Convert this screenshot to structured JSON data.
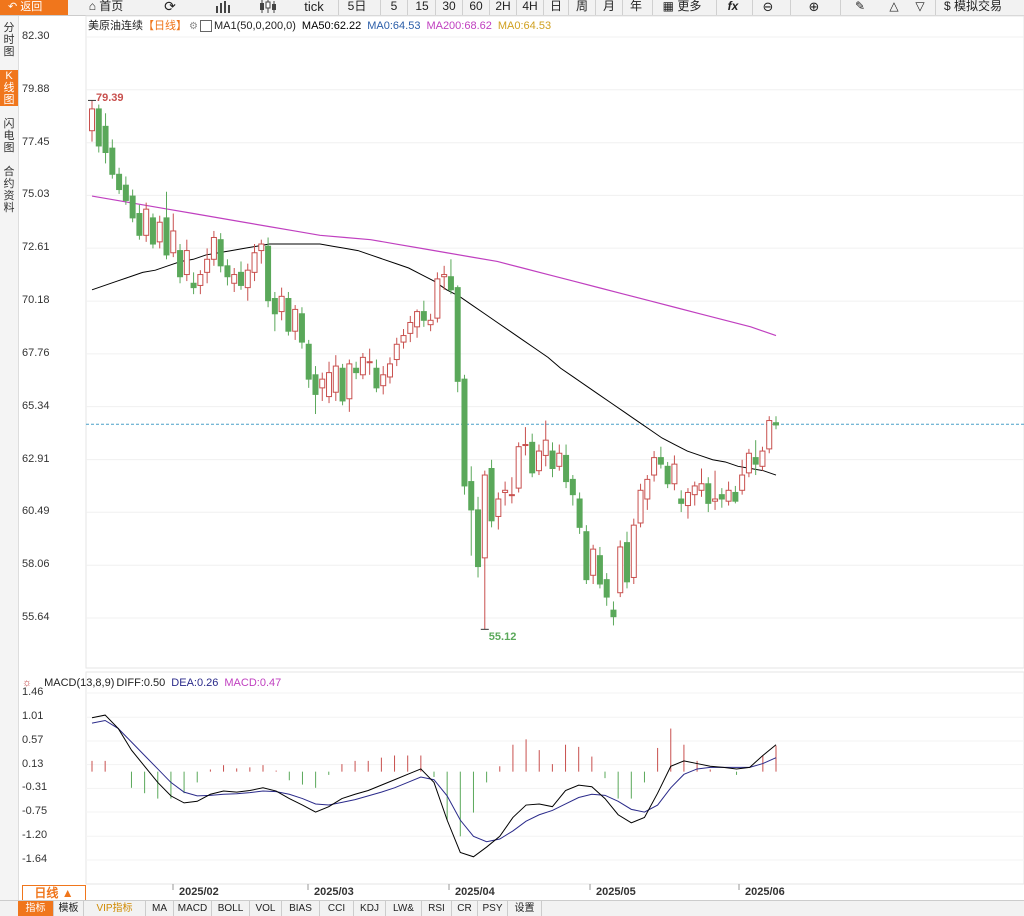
{
  "toolbar": {
    "back_label": "返回",
    "home_label": "首页",
    "period_buttons": [
      "5日",
      "5",
      "15",
      "30",
      "60",
      "2H",
      "4H",
      "日",
      "周",
      "月",
      "年"
    ],
    "tick_label": "tick",
    "more_label": "更多",
    "trade_label": "模拟交易"
  },
  "sidebar": [
    "分时图",
    "K线图",
    "闪电图",
    "合约资料"
  ],
  "main_header": {
    "symbol": "美原油连续",
    "period": "【日线】",
    "ma_label": "MA1(50,0,200,0)",
    "ma50": "MA50:62.22",
    "ma0": "MA0:64.53",
    "ma200": "MA200:68.62",
    "ma0b": "MA0:64.53"
  },
  "macd_header": {
    "label": "MACD(13,8,9)",
    "diff": "DIFF:0.50",
    "dea": "DEA:0.26",
    "macd": "MACD:0.47"
  },
  "price_axis": [
    "82.30",
    "79.88",
    "77.45",
    "75.03",
    "72.61",
    "70.18",
    "67.76",
    "65.34",
    "62.91",
    "60.49",
    "58.06",
    "55.64"
  ],
  "macd_axis": [
    "1.46",
    "1.01",
    "0.57",
    "0.13",
    "-0.31",
    "-0.75",
    "-1.20",
    "-1.64"
  ],
  "x_labels": [
    "2025/02",
    "2025/03",
    "2025/04",
    "2025/05",
    "2025/06"
  ],
  "annotations": {
    "high": "79.39",
    "low": "55.12",
    "current_price": 64.53
  },
  "period_selector": "日线",
  "bottom_tabs": [
    "指标",
    "模板",
    "VIP指标",
    "MA",
    "MACD",
    "BOLL",
    "VOL",
    "BIAS",
    "CCI",
    "KDJ",
    "LW&",
    "RSI",
    "CR",
    "PSY",
    "设置"
  ],
  "colors": {
    "up": "#c8504e",
    "down": "#5aa85a",
    "ma50": "#000000",
    "ma200": "#c040c0",
    "accent": "#f0761c",
    "current_line": "#4aa0c8",
    "diff": "#000000",
    "dea": "#2a2a8a",
    "macd_label": "#c040c0"
  },
  "chart_data": {
    "type": "candlestick",
    "x": [
      "2025/01/15",
      "2025/01/16",
      "2025/01/17",
      "2025/01/21",
      "2025/01/22",
      "2025/01/23",
      "2025/01/24",
      "2025/01/27",
      "2025/01/28",
      "2025/01/29",
      "2025/01/30",
      "2025/01/31",
      "2025/02/03",
      "2025/02/04",
      "2025/02/05",
      "2025/02/06",
      "2025/02/07",
      "2025/02/10",
      "2025/02/11",
      "2025/02/12",
      "2025/02/13",
      "2025/02/14",
      "2025/02/18",
      "2025/02/19",
      "2025/02/20",
      "2025/02/21",
      "2025/02/24",
      "2025/02/25",
      "2025/02/26",
      "2025/02/27",
      "2025/02/28",
      "2025/03/03",
      "2025/03/04",
      "2025/03/05",
      "2025/03/06",
      "2025/03/07",
      "2025/03/10",
      "2025/03/11",
      "2025/03/12",
      "2025/03/13",
      "2025/03/14",
      "2025/03/17",
      "2025/03/18",
      "2025/03/19",
      "2025/03/20",
      "2025/03/21",
      "2025/03/24",
      "2025/03/25",
      "2025/03/26",
      "2025/03/27",
      "2025/03/28",
      "2025/03/31",
      "2025/04/01",
      "2025/04/02",
      "2025/04/03",
      "2025/04/04",
      "2025/04/07",
      "2025/04/08",
      "2025/04/09",
      "2025/04/10",
      "2025/04/11",
      "2025/04/14",
      "2025/04/15",
      "2025/04/16",
      "2025/04/17",
      "2025/04/21",
      "2025/04/22",
      "2025/04/23",
      "2025/04/24",
      "2025/04/25",
      "2025/04/28",
      "2025/04/29",
      "2025/04/30",
      "2025/05/01",
      "2025/05/02",
      "2025/05/05",
      "2025/05/06",
      "2025/05/07",
      "2025/05/08",
      "2025/05/09",
      "2025/05/12",
      "2025/05/13",
      "2025/05/14",
      "2025/05/15",
      "2025/05/16",
      "2025/05/19",
      "2025/05/20",
      "2025/05/21",
      "2025/05/22",
      "2025/05/23",
      "2025/05/27",
      "2025/05/28",
      "2025/05/29",
      "2025/05/30",
      "2025/06/02",
      "2025/06/03",
      "2025/06/04",
      "2025/06/05",
      "2025/06/06",
      "2025/06/09",
      "2025/06/10"
    ],
    "ohlc": [
      [
        78.0,
        79.39,
        77.5,
        79.0
      ],
      [
        79.0,
        79.2,
        77.0,
        77.3
      ],
      [
        78.2,
        78.8,
        76.5,
        77.0
      ],
      [
        77.2,
        77.6,
        75.8,
        76.0
      ],
      [
        76.0,
        76.3,
        75.1,
        75.3
      ],
      [
        75.5,
        75.9,
        74.6,
        74.8
      ],
      [
        75.0,
        75.3,
        73.8,
        74.0
      ],
      [
        74.2,
        74.6,
        73.0,
        73.2
      ],
      [
        73.2,
        74.7,
        72.9,
        74.4
      ],
      [
        74.0,
        74.2,
        72.6,
        72.8
      ],
      [
        72.9,
        74.1,
        72.6,
        73.8
      ],
      [
        74.0,
        75.2,
        72.1,
        72.3
      ],
      [
        72.4,
        74.2,
        72.2,
        73.4
      ],
      [
        72.5,
        72.8,
        71.0,
        71.3
      ],
      [
        71.4,
        73.0,
        71.1,
        72.5
      ],
      [
        71.0,
        71.5,
        70.5,
        70.8
      ],
      [
        70.9,
        71.6,
        70.5,
        71.4
      ],
      [
        71.5,
        72.6,
        71.0,
        72.1
      ],
      [
        72.1,
        73.4,
        71.8,
        73.1
      ],
      [
        73.0,
        73.3,
        71.5,
        71.8
      ],
      [
        71.8,
        72.1,
        70.9,
        71.3
      ],
      [
        71.0,
        71.7,
        70.6,
        71.4
      ],
      [
        71.5,
        72.0,
        70.7,
        70.9
      ],
      [
        70.8,
        71.9,
        70.2,
        71.6
      ],
      [
        71.5,
        72.8,
        71.1,
        72.4
      ],
      [
        72.5,
        73.0,
        71.9,
        72.8
      ],
      [
        72.7,
        73.1,
        69.9,
        70.2
      ],
      [
        70.3,
        70.6,
        68.8,
        69.6
      ],
      [
        69.7,
        70.8,
        69.3,
        70.4
      ],
      [
        70.3,
        70.6,
        68.6,
        68.8
      ],
      [
        68.8,
        70.0,
        68.4,
        69.8
      ],
      [
        69.6,
        69.9,
        68.0,
        68.3
      ],
      [
        68.2,
        68.4,
        66.2,
        66.6
      ],
      [
        66.8,
        67.2,
        65.0,
        65.9
      ],
      [
        66.2,
        66.9,
        65.6,
        66.6
      ],
      [
        65.8,
        67.4,
        65.5,
        66.9
      ],
      [
        66.0,
        67.7,
        65.6,
        67.2
      ],
      [
        67.1,
        67.3,
        65.4,
        65.6
      ],
      [
        65.7,
        67.5,
        65.1,
        67.3
      ],
      [
        67.1,
        67.4,
        66.6,
        66.9
      ],
      [
        66.8,
        67.8,
        66.6,
        67.6
      ],
      [
        67.4,
        68.0,
        66.8,
        67.4
      ],
      [
        67.1,
        67.5,
        66.0,
        66.2
      ],
      [
        66.3,
        67.2,
        65.9,
        66.8
      ],
      [
        66.7,
        67.6,
        66.4,
        67.3
      ],
      [
        67.5,
        68.5,
        67.2,
        68.2
      ],
      [
        68.3,
        68.9,
        68.0,
        68.6
      ],
      [
        68.7,
        69.5,
        68.3,
        69.2
      ],
      [
        69.0,
        69.8,
        68.5,
        69.7
      ],
      [
        69.7,
        70.2,
        69.0,
        69.3
      ],
      [
        69.1,
        69.6,
        68.8,
        69.3
      ],
      [
        69.4,
        71.5,
        69.2,
        71.2
      ],
      [
        71.3,
        71.8,
        70.7,
        71.4
      ],
      [
        71.3,
        72.1,
        70.5,
        70.7
      ],
      [
        70.8,
        70.9,
        66.0,
        66.5
      ],
      [
        66.6,
        66.8,
        61.3,
        61.7
      ],
      [
        61.9,
        62.6,
        58.5,
        60.6
      ],
      [
        60.6,
        61.2,
        57.5,
        58.0
      ],
      [
        58.4,
        62.4,
        55.12,
        62.2
      ],
      [
        62.5,
        62.9,
        59.8,
        60.1
      ],
      [
        60.3,
        61.4,
        59.7,
        61.1
      ],
      [
        61.4,
        61.9,
        60.8,
        61.5
      ],
      [
        61.3,
        62.1,
        60.9,
        61.3
      ],
      [
        61.6,
        63.7,
        61.4,
        63.5
      ],
      [
        63.6,
        64.4,
        63.1,
        63.6
      ],
      [
        63.7,
        64.1,
        62.1,
        62.3
      ],
      [
        62.4,
        63.6,
        62.2,
        63.3
      ],
      [
        63.1,
        64.7,
        62.6,
        63.8
      ],
      [
        63.3,
        63.7,
        62.1,
        62.5
      ],
      [
        62.6,
        63.6,
        62.4,
        63.2
      ],
      [
        63.1,
        63.6,
        61.6,
        61.9
      ],
      [
        62.0,
        62.2,
        60.8,
        61.3
      ],
      [
        61.1,
        61.4,
        59.5,
        59.8
      ],
      [
        59.6,
        59.9,
        57.2,
        57.4
      ],
      [
        57.6,
        59.0,
        57.2,
        58.8
      ],
      [
        58.5,
        58.9,
        57.0,
        57.2
      ],
      [
        57.4,
        57.7,
        56.2,
        56.6
      ],
      [
        56.0,
        56.4,
        55.3,
        55.7
      ],
      [
        56.8,
        59.2,
        56.6,
        58.9
      ],
      [
        59.1,
        59.6,
        57.0,
        57.3
      ],
      [
        57.5,
        60.2,
        57.2,
        59.9
      ],
      [
        60.0,
        61.8,
        59.8,
        61.5
      ],
      [
        61.1,
        62.2,
        60.6,
        62.0
      ],
      [
        62.2,
        63.3,
        61.9,
        63.0
      ],
      [
        63.0,
        63.5,
        62.5,
        62.7
      ],
      [
        62.6,
        62.8,
        61.6,
        61.8
      ],
      [
        61.8,
        63.1,
        61.5,
        62.7
      ],
      [
        61.1,
        61.5,
        60.5,
        60.9
      ],
      [
        60.8,
        61.6,
        60.2,
        61.4
      ],
      [
        61.3,
        61.9,
        60.8,
        61.7
      ],
      [
        61.5,
        62.5,
        61.2,
        61.8
      ],
      [
        61.8,
        62.1,
        60.5,
        60.9
      ],
      [
        61.0,
        62.4,
        60.6,
        61.1
      ],
      [
        61.3,
        61.6,
        60.7,
        61.1
      ],
      [
        61.0,
        61.9,
        60.8,
        61.5
      ],
      [
        61.4,
        61.7,
        60.9,
        61.0
      ],
      [
        61.5,
        62.9,
        61.3,
        62.2
      ],
      [
        62.3,
        63.4,
        62.1,
        63.2
      ],
      [
        63.0,
        63.8,
        62.2,
        62.7
      ],
      [
        62.6,
        63.5,
        62.4,
        63.3
      ],
      [
        63.4,
        64.9,
        63.2,
        64.7
      ],
      [
        64.6,
        64.9,
        64.3,
        64.5
      ]
    ],
    "ma50": [
      70.7,
      70.9,
      71.1,
      71.3,
      71.5,
      71.6,
      71.8,
      72.0,
      72.1,
      72.3,
      72.4,
      72.5,
      72.6,
      72.7,
      72.8,
      72.8,
      72.8,
      72.8,
      72.8,
      72.7,
      72.6,
      72.5,
      72.3,
      72.1,
      71.9,
      71.7,
      71.4,
      71.1,
      70.7,
      70.4,
      70.0,
      69.6,
      69.2,
      68.8,
      68.4,
      68.0,
      67.6,
      67.1,
      66.7,
      66.3,
      65.9,
      65.5,
      65.1,
      64.7,
      64.3,
      63.9,
      63.6,
      63.3,
      63.1,
      62.9,
      62.8,
      62.6,
      62.5,
      62.4,
      62.2
    ],
    "ma200": [
      75.0,
      74.8,
      74.6,
      74.4,
      74.2,
      74.0,
      73.8,
      73.6,
      73.4,
      73.2,
      73.1,
      73.0,
      72.8,
      72.6,
      72.4,
      72.2,
      72.0,
      71.7,
      71.4,
      71.1,
      70.8,
      70.5,
      70.2,
      69.9,
      69.6,
      69.3,
      69.0,
      68.6
    ],
    "macd_diff": [
      1.0,
      1.05,
      0.8,
      0.4,
      0.1,
      -0.2,
      -0.45,
      -0.58,
      -0.55,
      -0.42,
      -0.36,
      -0.38,
      -0.35,
      -0.3,
      -0.36,
      -0.5,
      -0.62,
      -0.75,
      -0.65,
      -0.5,
      -0.42,
      -0.35,
      -0.25,
      -0.15,
      -0.05,
      0.05,
      -0.2,
      -0.9,
      -1.5,
      -1.58,
      -1.4,
      -1.2,
      -0.85,
      -0.62,
      -0.6,
      -0.65,
      -0.35,
      -0.25,
      -0.28,
      -0.5,
      -0.8,
      -0.95,
      -0.85,
      -0.4,
      0.1,
      0.2,
      0.15,
      0.1,
      0.08,
      0.05,
      0.08,
      0.3,
      0.5
    ],
    "macd_dea": [
      0.9,
      0.95,
      0.8,
      0.55,
      0.3,
      0.05,
      -0.2,
      -0.38,
      -0.45,
      -0.44,
      -0.42,
      -0.41,
      -0.39,
      -0.36,
      -0.37,
      -0.42,
      -0.5,
      -0.6,
      -0.62,
      -0.57,
      -0.52,
      -0.45,
      -0.38,
      -0.3,
      -0.2,
      -0.1,
      -0.15,
      -0.45,
      -0.9,
      -1.2,
      -1.3,
      -1.25,
      -1.1,
      -0.92,
      -0.8,
      -0.72,
      -0.6,
      -0.48,
      -0.42,
      -0.44,
      -0.55,
      -0.7,
      -0.75,
      -0.62,
      -0.3,
      -0.05,
      0.05,
      0.08,
      0.08,
      0.08,
      0.08,
      0.15,
      0.26
    ],
    "xlabel": "",
    "ylabel": ""
  }
}
